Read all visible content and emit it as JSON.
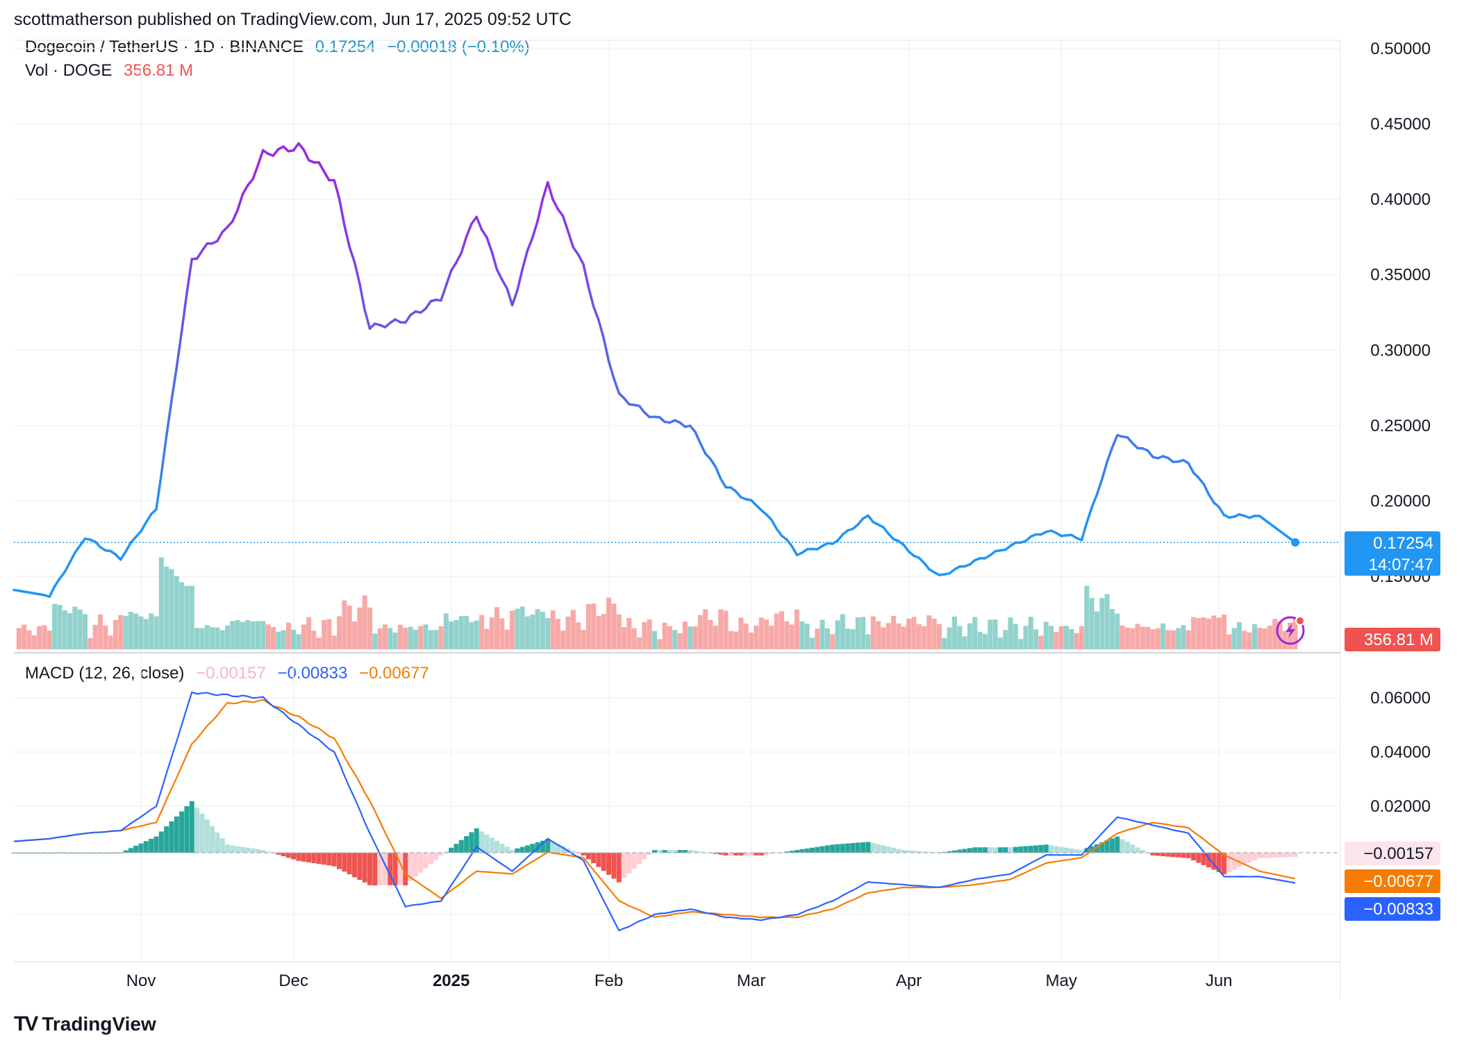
{
  "header": {
    "published": "scottmatherson published on TradingView.com, Jun 17, 2025 09:52 UTC"
  },
  "legend": {
    "symbol": "Dogecoin / TetherUS · 1D · BINANCE",
    "price": "0.17254",
    "change": "−0.00018 (−0.10%)",
    "vol_label": "Vol · DOGE",
    "vol_value": "356.81 M"
  },
  "macd_legend": {
    "label": "MACD (12, 26, close)",
    "hist": "−0.00157",
    "macd": "−0.00833",
    "signal": "−0.00677"
  },
  "price_axis": {
    "ticks": [
      "0.50000",
      "0.45000",
      "0.40000",
      "0.35000",
      "0.30000",
      "0.25000",
      "0.20000",
      "0.15000"
    ],
    "current_price": "0.17254",
    "countdown": "14:07:47",
    "volume_tag": "356.81 M"
  },
  "macd_axis": {
    "ticks": [
      "0.06000",
      "0.04000",
      "0.02000"
    ],
    "hist_tag": "−0.00157",
    "signal_tag": "−0.00677",
    "macd_tag": "−0.00833"
  },
  "time_axis": {
    "labels": [
      "Nov",
      "Dec",
      "2025",
      "Feb",
      "Mar",
      "Apr",
      "May",
      "Jun"
    ]
  },
  "footer": {
    "brand": "TradingView",
    "logo_mark": "TV"
  },
  "colors": {
    "price_blue": "#2196f3",
    "price_purple": "#9c27e0",
    "vol_up": "#26a69a",
    "vol_down": "#ef5350",
    "macd_line": "#2962ff",
    "signal_line": "#f57c00"
  },
  "chart_data": {
    "type": "line",
    "title": "Dogecoin / TetherUS · 1D · BINANCE",
    "x": [
      "2024-10-07",
      "2024-10-14",
      "2024-10-21",
      "2024-10-28",
      "2024-11-04",
      "2024-11-11",
      "2024-11-18",
      "2024-11-25",
      "2024-12-02",
      "2024-12-09",
      "2024-12-16",
      "2024-12-23",
      "2024-12-30",
      "2025-01-06",
      "2025-01-13",
      "2025-01-20",
      "2025-01-27",
      "2025-02-03",
      "2025-02-10",
      "2025-02-17",
      "2025-02-24",
      "2025-03-03",
      "2025-03-10",
      "2025-03-17",
      "2025-03-24",
      "2025-03-31",
      "2025-04-07",
      "2025-04-14",
      "2025-04-21",
      "2025-04-28",
      "2025-05-05",
      "2025-05-12",
      "2025-05-19",
      "2025-05-26",
      "2025-06-02",
      "2025-06-09",
      "2025-06-16"
    ],
    "series": [
      {
        "name": "Dogecoin / TetherUS",
        "values": [
          0.141,
          0.137,
          0.176,
          0.162,
          0.195,
          0.36,
          0.38,
          0.43,
          0.435,
          0.412,
          0.315,
          0.32,
          0.335,
          0.39,
          0.33,
          0.41,
          0.355,
          0.27,
          0.255,
          0.25,
          0.21,
          0.195,
          0.165,
          0.172,
          0.19,
          0.17,
          0.15,
          0.16,
          0.17,
          0.18,
          0.175,
          0.245,
          0.23,
          0.225,
          0.19,
          0.19,
          0.1725
        ]
      }
    ],
    "volume_bars": [
      {
        "name": "Vol · DOGE"
      }
    ],
    "macd": {
      "label": "MACD (12, 26, close)",
      "macd": [
        0.007,
        0.008,
        0.01,
        0.011,
        0.02,
        0.062,
        0.061,
        0.06,
        0.05,
        0.04,
        0.01,
        -0.017,
        -0.015,
        0.005,
        -0.004,
        0.008,
        0.0,
        -0.026,
        -0.02,
        -0.018,
        -0.021,
        -0.022,
        -0.02,
        -0.015,
        -0.008,
        -0.009,
        -0.01,
        -0.007,
        -0.005,
        0.002,
        0.002,
        0.016,
        0.013,
        0.01,
        -0.006,
        -0.006,
        -0.00833
      ],
      "signal": [
        0.007,
        0.008,
        0.01,
        0.011,
        0.014,
        0.043,
        0.058,
        0.059,
        0.053,
        0.045,
        0.022,
        -0.005,
        -0.014,
        -0.004,
        -0.005,
        0.003,
        0.001,
        -0.015,
        -0.021,
        -0.019,
        -0.02,
        -0.021,
        -0.021,
        -0.018,
        -0.012,
        -0.01,
        -0.01,
        -0.009,
        -0.007,
        -0.001,
        0.001,
        0.01,
        0.014,
        0.012,
        0.002,
        -0.004,
        -0.00677
      ]
    },
    "ylim": [
      0.135,
      0.5
    ],
    "xlabel": "",
    "ylabel": "",
    "grid": true
  }
}
